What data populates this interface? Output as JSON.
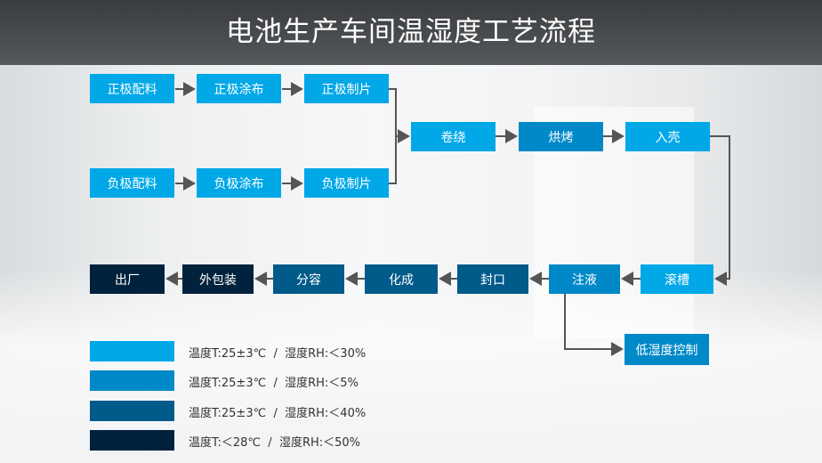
{
  "title": "电池生产车间温湿度工艺流程",
  "colors": {
    "c1": "#00a8e8",
    "c2": "#0089c8",
    "c3": "#005a8a",
    "c4": "#00223d"
  },
  "steps": {
    "positive_mix": "正极配料",
    "positive_coat": "正极涂布",
    "positive_cut": "正极制片",
    "negative_mix": "负极配料",
    "negative_coat": "负极涂布",
    "negative_cut": "负极制片",
    "winding": "卷绕",
    "baking": "烘烤",
    "casing": "入壳",
    "grooving": "滚槽",
    "injection": "注液",
    "sealing": "封口",
    "formation": "化成",
    "grading": "分容",
    "packing": "外包装",
    "shipping": "出厂",
    "low_humidity": "低湿度控制"
  },
  "legend": [
    {
      "color": "#00a8e8",
      "text": "温度T:25±3℃  /  湿度RH:＜30%"
    },
    {
      "color": "#0089c8",
      "text": "温度T:25±3℃  /  湿度RH:＜5%"
    },
    {
      "color": "#005a8a",
      "text": "温度T:25±3℃  /  湿度RH:＜40%"
    },
    {
      "color": "#00223d",
      "text": "温度T:＜28℃  /  湿度RH:＜50%"
    }
  ]
}
